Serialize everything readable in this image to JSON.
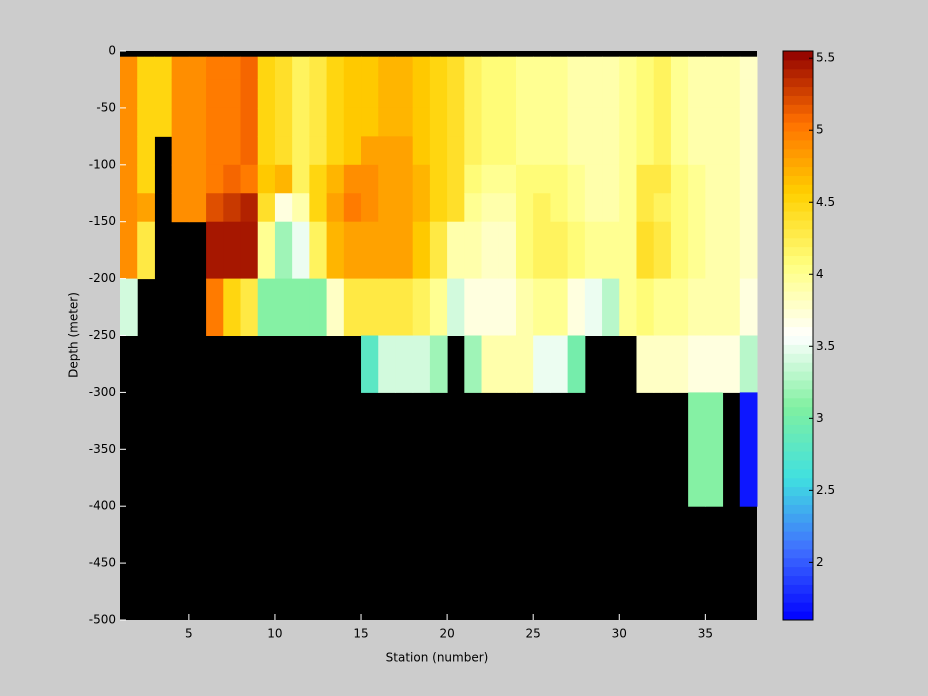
{
  "chart_data": {
    "type": "heatmap",
    "xlabel": "Station (number)",
    "ylabel": "Depth (meter)",
    "x": [
      1,
      2,
      3,
      4,
      5,
      6,
      7,
      8,
      9,
      10,
      11,
      12,
      13,
      14,
      15,
      16,
      17,
      18,
      19,
      20,
      21,
      22,
      23,
      24,
      25,
      26,
      27,
      28,
      29,
      30,
      31,
      32,
      33,
      34,
      35,
      36,
      37
    ],
    "y_edges": [
      -5,
      -25,
      -50,
      -75,
      -100,
      -125,
      -150,
      -200,
      -250,
      -300,
      -400
    ],
    "values": [
      [
        4.9,
        4.9,
        4.9,
        4.9,
        4.9,
        4.9,
        4.9,
        3.4,
        null,
        null
      ],
      [
        4.5,
        4.5,
        4.5,
        4.5,
        4.5,
        4.8,
        4.3,
        null,
        null,
        null
      ],
      [
        4.5,
        4.5,
        4.5,
        null,
        null,
        null,
        null,
        null,
        null,
        null
      ],
      [
        4.9,
        4.9,
        4.9,
        4.9,
        4.9,
        4.9,
        null,
        null,
        null,
        null
      ],
      [
        4.9,
        4.9,
        4.9,
        4.9,
        4.9,
        4.9,
        null,
        null,
        null,
        null
      ],
      [
        5.0,
        5.0,
        5.0,
        5.0,
        5.0,
        5.2,
        5.45,
        5.0,
        null,
        null
      ],
      [
        5.0,
        5.0,
        5.0,
        5.0,
        5.1,
        5.3,
        5.45,
        4.5,
        null,
        null
      ],
      [
        5.1,
        5.1,
        5.1,
        5.1,
        5.0,
        5.4,
        5.45,
        4.3,
        null,
        null
      ],
      [
        4.5,
        4.5,
        4.5,
        4.5,
        4.6,
        4.4,
        4.0,
        3.1,
        null,
        null
      ],
      [
        4.4,
        4.4,
        4.4,
        4.4,
        4.7,
        3.7,
        3.2,
        3.1,
        null,
        null
      ],
      [
        4.2,
        4.2,
        4.2,
        4.2,
        4.2,
        3.9,
        3.5,
        3.1,
        null,
        null
      ],
      [
        4.3,
        4.3,
        4.3,
        4.3,
        4.5,
        4.5,
        4.2,
        3.1,
        null,
        null
      ],
      [
        4.5,
        4.5,
        4.5,
        4.5,
        4.7,
        4.8,
        4.7,
        3.8,
        null,
        null
      ],
      [
        4.6,
        4.6,
        4.6,
        4.6,
        4.9,
        5.0,
        4.8,
        4.3,
        null,
        null
      ],
      [
        4.6,
        4.6,
        4.6,
        4.8,
        4.9,
        4.9,
        4.8,
        4.3,
        2.8,
        null
      ],
      [
        4.7,
        4.7,
        4.7,
        4.8,
        4.8,
        4.8,
        4.8,
        4.3,
        3.4,
        null
      ],
      [
        4.7,
        4.7,
        4.7,
        4.8,
        4.8,
        4.8,
        4.8,
        4.3,
        3.4,
        null
      ],
      [
        4.6,
        4.6,
        4.6,
        4.6,
        4.7,
        4.7,
        4.6,
        4.2,
        3.4,
        null
      ],
      [
        4.5,
        4.5,
        4.5,
        4.5,
        4.5,
        4.5,
        4.3,
        4.0,
        3.2,
        null
      ],
      [
        4.4,
        4.4,
        4.4,
        4.4,
        4.4,
        4.4,
        3.9,
        3.4,
        null,
        null
      ],
      [
        4.2,
        4.2,
        4.2,
        4.2,
        4.1,
        4.0,
        3.9,
        3.7,
        3.2,
        null
      ],
      [
        4.1,
        4.1,
        4.1,
        4.1,
        4.0,
        3.9,
        3.8,
        3.7,
        3.9,
        null
      ],
      [
        4.1,
        4.1,
        4.1,
        4.1,
        4.0,
        3.9,
        3.8,
        3.7,
        3.9,
        null
      ],
      [
        4.0,
        4.0,
        4.0,
        4.0,
        4.1,
        4.1,
        4.1,
        3.9,
        3.9,
        null
      ],
      [
        4.0,
        4.0,
        4.0,
        4.0,
        4.1,
        4.2,
        4.2,
        4.0,
        3.5,
        null
      ],
      [
        4.0,
        4.0,
        4.0,
        4.0,
        4.1,
        4.1,
        4.2,
        4.0,
        3.5,
        null
      ],
      [
        3.9,
        3.9,
        3.9,
        3.9,
        4.0,
        4.0,
        4.1,
        3.7,
        3.0,
        null
      ],
      [
        3.9,
        3.9,
        3.9,
        3.9,
        3.9,
        3.9,
        4.0,
        3.5,
        null,
        null
      ],
      [
        3.9,
        3.9,
        3.9,
        3.9,
        3.9,
        3.9,
        4.0,
        3.3,
        null,
        null
      ],
      [
        4.0,
        4.0,
        4.0,
        4.0,
        4.0,
        4.0,
        4.0,
        4.0,
        null,
        null
      ],
      [
        4.1,
        4.1,
        4.1,
        4.1,
        4.3,
        4.3,
        4.4,
        4.1,
        3.8,
        null
      ],
      [
        4.2,
        4.2,
        4.2,
        4.2,
        4.3,
        4.2,
        4.3,
        4.0,
        3.8,
        null
      ],
      [
        4.0,
        4.0,
        4.0,
        4.0,
        4.1,
        4.1,
        4.1,
        4.0,
        3.8,
        null
      ],
      [
        3.9,
        3.9,
        3.9,
        3.9,
        4.0,
        4.0,
        4.0,
        3.9,
        3.7,
        3.1
      ],
      [
        3.9,
        3.9,
        3.9,
        3.9,
        3.9,
        3.9,
        3.9,
        3.9,
        3.7,
        3.1
      ],
      [
        3.9,
        3.9,
        3.9,
        3.9,
        3.9,
        3.9,
        3.9,
        3.9,
        3.7,
        null
      ],
      [
        3.8,
        3.8,
        3.8,
        3.8,
        3.8,
        3.8,
        3.8,
        3.7,
        3.3,
        1.7
      ]
    ],
    "xlim": [
      1,
      38
    ],
    "ylim": [
      -500,
      0
    ],
    "xticks": [
      5,
      10,
      15,
      20,
      25,
      30,
      35
    ],
    "yticks": [
      0,
      -50,
      -100,
      -150,
      -200,
      -250,
      -300,
      -350,
      -400,
      -450,
      -500
    ],
    "clim": [
      1.6,
      5.55
    ],
    "cticks": [
      2,
      2.5,
      3,
      3.5,
      4,
      4.5,
      5,
      5.5
    ],
    "colormap": [
      "#0000ff",
      "#4070ff",
      "#40e0e0",
      "#80f0a0",
      "#ffffff",
      "#ffff80",
      "#ffd000",
      "#ff7000",
      "#900000"
    ],
    "nan_color": "#000000"
  }
}
